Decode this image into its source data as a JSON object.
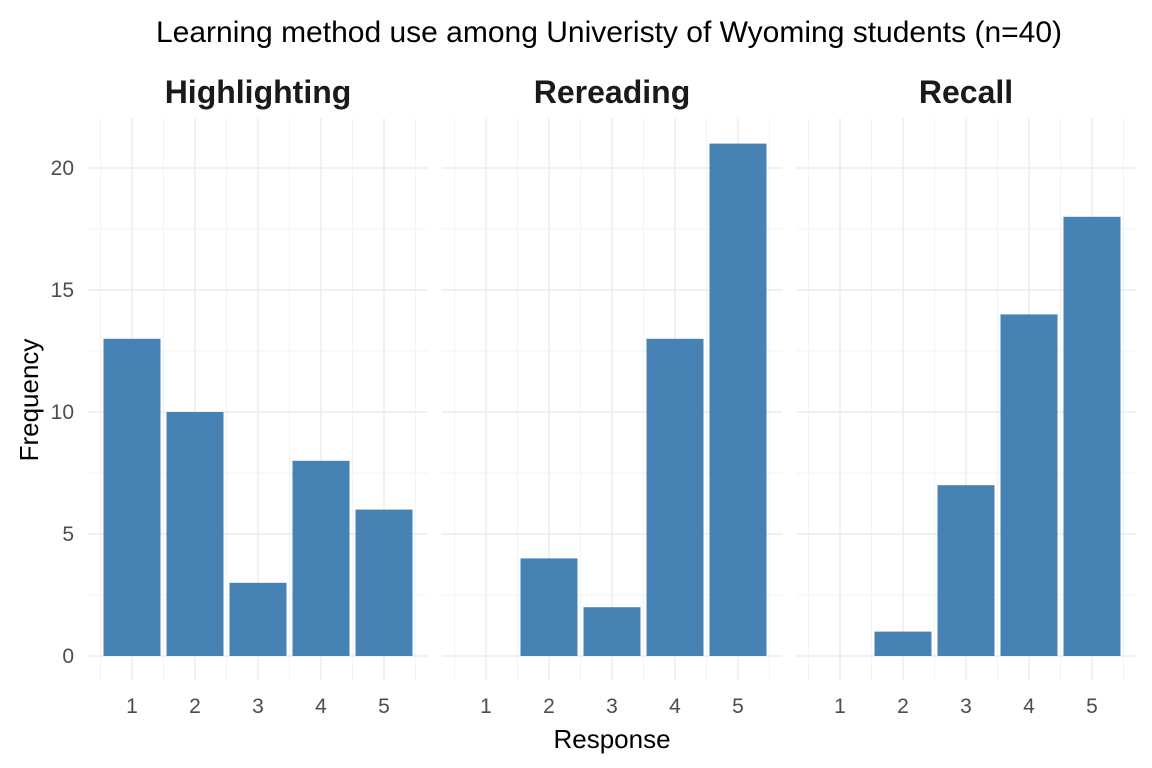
{
  "chart_data": {
    "type": "bar",
    "title": "Learning method use among Univeristy of Wyoming students (n=40)",
    "xlabel": "Response",
    "ylabel": "Frequency",
    "categories": [
      "1",
      "2",
      "3",
      "4",
      "5"
    ],
    "ylim": [
      0,
      22
    ],
    "yticks": [
      0,
      5,
      10,
      15,
      20
    ],
    "grid": true,
    "bar_color": "#4682B4",
    "facets": [
      {
        "name": "Highlighting",
        "values": [
          13,
          10,
          3,
          8,
          6
        ]
      },
      {
        "name": "Rereading",
        "values": [
          0,
          4,
          2,
          13,
          21
        ]
      },
      {
        "name": "Recall",
        "values": [
          0,
          1,
          7,
          14,
          18
        ]
      }
    ]
  }
}
